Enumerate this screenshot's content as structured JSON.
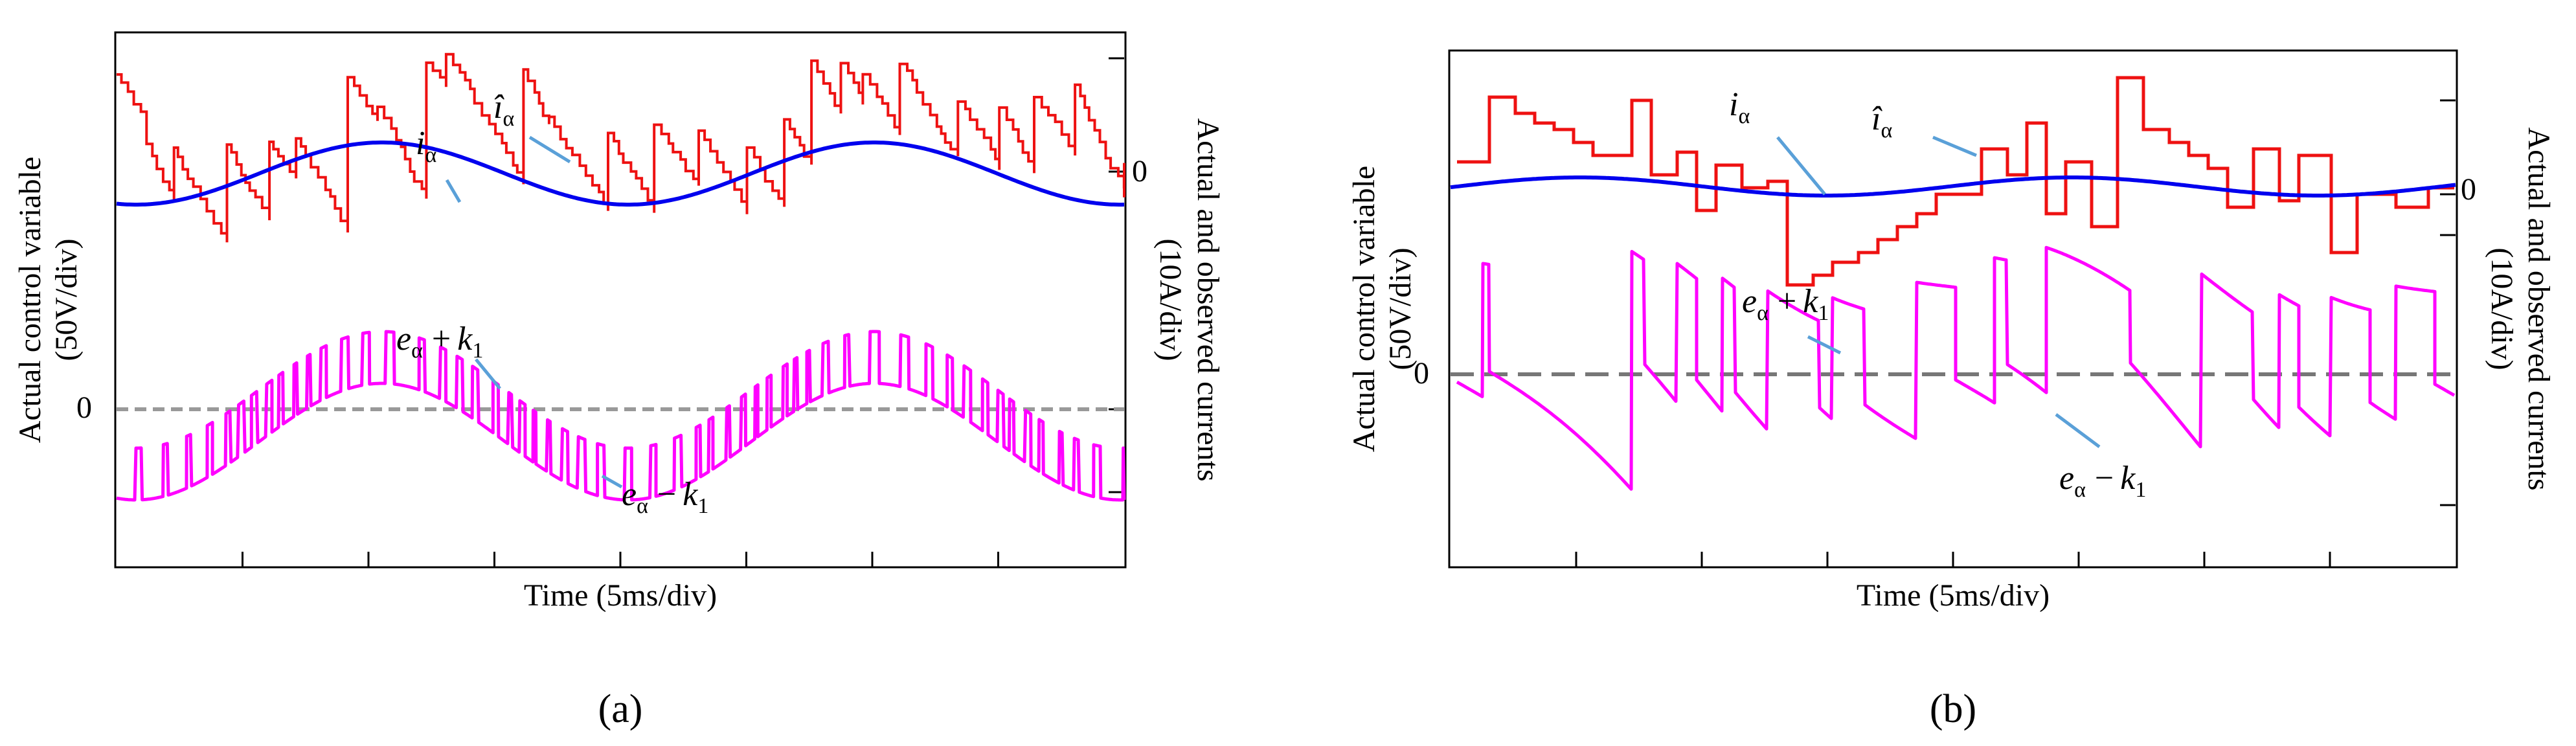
{
  "chart_data": [
    {
      "type": "line",
      "panel": "a",
      "caption": "(a)",
      "xlabel": "Time (5ms/div)",
      "ylabel_left_line1": "Actual control variable",
      "ylabel_left_line2": "(50V/div)",
      "ylabel_right_line1": "Actual and observed currents",
      "ylabel_right_line2": "(10A/div)",
      "left_zero_label": "0",
      "right_zero_label": "0",
      "x_divisions": 8,
      "xlim_ms": [
        0,
        40
      ],
      "series": [
        {
          "name": "i_alpha",
          "color": "#0000ee",
          "description": "actual current, sinusoid period ~20 ms"
        },
        {
          "name": "i_alpha_hat",
          "color": "#ee1111",
          "description": "observed current, staircase sawtooth around i_alpha"
        },
        {
          "name": "e_alpha + k1",
          "color": "#ff00ff",
          "description": "upper envelope of control variable"
        },
        {
          "name": "e_alpha - k1",
          "color": "#ff00ff",
          "description": "lower envelope of control variable"
        }
      ],
      "annotations": {
        "i_alpha": {
          "base": "i",
          "sub": "α"
        },
        "i_alpha_hat": {
          "base": "î",
          "sub": "α"
        },
        "e_plus": {
          "base": "e",
          "sub": "α",
          "op": "+",
          "k": "k",
          "ksub": "1"
        },
        "e_minus": {
          "base": "e",
          "sub": "α",
          "op": "−",
          "k": "k",
          "ksub": "1"
        }
      }
    },
    {
      "type": "line",
      "panel": "b",
      "caption": "(b)",
      "xlabel": "Time (5ms/div)",
      "ylabel_left_line1": "Actual control variable",
      "ylabel_left_line2": "(50V/div)",
      "ylabel_right_line1": "Actual and observed currents",
      "ylabel_right_line2": "(10A/div)",
      "left_zero_label": "0",
      "right_zero_label": "0",
      "x_divisions": 8,
      "xlim_ms": [
        0,
        40
      ],
      "series": [
        {
          "name": "i_alpha",
          "color": "#0000ee",
          "description": "actual current, small-amplitude sinusoid"
        },
        {
          "name": "i_alpha_hat",
          "color": "#ee1111",
          "description": "observed current, coarse staircase"
        },
        {
          "name": "e_alpha + k1",
          "color": "#ff00ff",
          "description": "upper envelope of control variable"
        },
        {
          "name": "e_alpha - k1",
          "color": "#ff00ff",
          "description": "lower envelope of control variable"
        }
      ],
      "annotations": {
        "i_alpha": {
          "base": "i",
          "sub": "α"
        },
        "i_alpha_hat": {
          "base": "î",
          "sub": "α"
        },
        "e_plus": {
          "base": "e",
          "sub": "α",
          "op": "+",
          "k": "k",
          "ksub": "1"
        },
        "e_minus": {
          "base": "e",
          "sub": "α",
          "op": "−",
          "k": "k",
          "ksub": "1"
        }
      }
    }
  ]
}
